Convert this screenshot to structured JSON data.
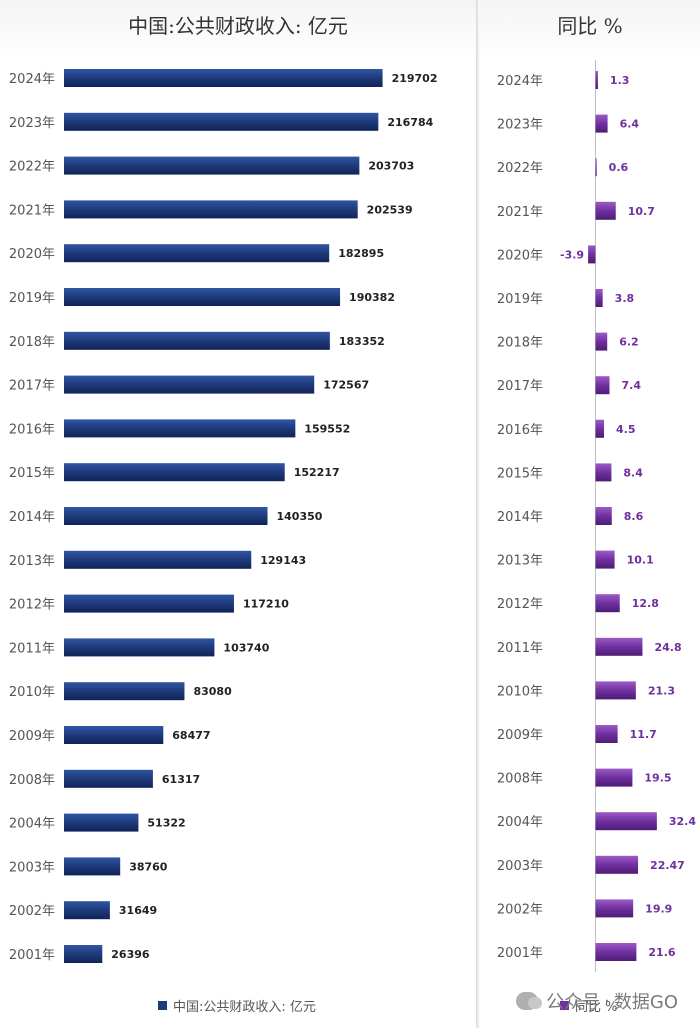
{
  "chart_data": [
    {
      "type": "bar",
      "orientation": "horizontal",
      "title": "中国:公共财政收入: 亿元",
      "categories": [
        "2024年",
        "2023年",
        "2022年",
        "2021年",
        "2020年",
        "2019年",
        "2018年",
        "2017年",
        "2016年",
        "2015年",
        "2014年",
        "2013年",
        "2012年",
        "2011年",
        "2010年",
        "2009年",
        "2008年",
        "2004年",
        "2003年",
        "2002年",
        "2001年"
      ],
      "series": [
        {
          "name": "中国:公共财政收入: 亿元",
          "values": [
            219702,
            216784,
            203703,
            202539,
            182895,
            190382,
            183352,
            172567,
            159552,
            152217,
            140350,
            129143,
            117210,
            103740,
            83080,
            68477,
            61317,
            51322,
            38760,
            31649,
            26396
          ]
        }
      ],
      "xlim": [
        0,
        220000
      ],
      "legend": "bottom-center",
      "color": "#1f3a7a"
    },
    {
      "type": "bar",
      "orientation": "horizontal",
      "title": "同比 %",
      "categories": [
        "2024年",
        "2023年",
        "2022年",
        "2021年",
        "2020年",
        "2019年",
        "2018年",
        "2017年",
        "2016年",
        "2015年",
        "2014年",
        "2013年",
        "2012年",
        "2011年",
        "2010年",
        "2009年",
        "2008年",
        "2004年",
        "2003年",
        "2002年",
        "2001年"
      ],
      "series": [
        {
          "name": "同比 %",
          "values": [
            1.3,
            6.4,
            0.6,
            10.7,
            -3.9,
            3.8,
            6.2,
            7.4,
            4.5,
            8.4,
            8.6,
            10.1,
            12.8,
            24.8,
            21.3,
            11.7,
            19.5,
            32.4,
            22.47,
            19.9,
            21.6
          ]
        }
      ],
      "xlim": [
        -5,
        33
      ],
      "legend": "bottom-center",
      "color": "#7030a0"
    }
  ],
  "watermark": {
    "left": "公众号",
    "separator": "·",
    "right": "数据GO"
  }
}
